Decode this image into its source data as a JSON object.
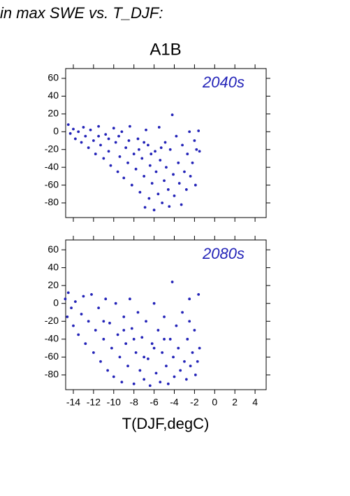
{
  "title": "in max SWE vs. T_DJF:",
  "subtitle": "A1B",
  "xlabel": "T(DJF,degC)",
  "chart_data": [
    {
      "type": "scatter",
      "annotation": "2040s",
      "color": "#2323b8",
      "xlim": [
        -14.76,
        5.1
      ],
      "ylim": [
        -96.5,
        71
      ],
      "yticks": [
        -80,
        -60,
        -40,
        -20,
        0,
        20,
        40,
        60
      ],
      "x": [
        -14.5,
        -14.3,
        -14.0,
        -13.8,
        -13.5,
        -13.2,
        -13.0,
        -12.8,
        -12.5,
        -12.3,
        -12.0,
        -11.8,
        -11.5,
        -11.3,
        -11.0,
        -10.8,
        -10.5,
        -10.3,
        -10.0,
        -9.8,
        -9.6,
        -9.4,
        -9.2,
        -9.0,
        -8.8,
        -8.6,
        -8.4,
        -8.2,
        -8.0,
        -7.8,
        -7.6,
        -7.4,
        -7.2,
        -7.0,
        -6.9,
        -6.8,
        -6.6,
        -6.5,
        -6.4,
        -6.2,
        -6.0,
        -5.9,
        -5.8,
        -5.6,
        -5.5,
        -5.4,
        -5.2,
        -5.0,
        -4.9,
        -4.8,
        -4.6,
        -4.5,
        -4.4,
        -4.2,
        -4.1,
        -4.0,
        -3.8,
        -3.6,
        -3.5,
        -3.3,
        -3.2,
        -3.0,
        -2.8,
        -2.7,
        -2.5,
        -2.4,
        -2.2,
        -2.0,
        -1.9,
        -1.8,
        -1.6,
        -1.5,
        -7.5,
        -8.5,
        -6.3,
        -5.3,
        -9.5,
        -10.5,
        -11.5,
        -7.0
      ],
      "y": [
        8,
        -2,
        3,
        -8,
        0,
        -12,
        5,
        -5,
        -18,
        2,
        -10,
        -25,
        6,
        -15,
        -30,
        -3,
        -22,
        -38,
        4,
        -12,
        -45,
        -28,
        0,
        -52,
        -18,
        -35,
        6,
        -60,
        -25,
        -42,
        -8,
        -68,
        -30,
        -50,
        -85,
        2,
        -15,
        -75,
        -38,
        -58,
        -88,
        -22,
        -45,
        -70,
        5,
        -32,
        -80,
        -55,
        -12,
        -40,
        -65,
        -84,
        -20,
        19,
        -48,
        -72,
        -5,
        -35,
        -58,
        -82,
        -15,
        -45,
        -65,
        -25,
        0,
        -50,
        -35,
        -10,
        -60,
        -20,
        1,
        -22,
        -20,
        -10,
        -25,
        -18,
        -5,
        -8,
        -5,
        -12
      ]
    },
    {
      "type": "scatter",
      "annotation": "2080s",
      "color": "#2323b8",
      "xlim": [
        -14.76,
        5.1
      ],
      "ylim": [
        -96.5,
        71
      ],
      "yticks": [
        -80,
        -60,
        -40,
        -20,
        0,
        20,
        40,
        60
      ],
      "xticks": [
        -14,
        -12,
        -10,
        -8,
        -6,
        -4,
        -2,
        0,
        2,
        4
      ],
      "x": [
        -14.8,
        -14.6,
        -14.5,
        -14.2,
        -14.0,
        -13.8,
        -13.5,
        -13.2,
        -13.0,
        -12.8,
        -12.5,
        -12.2,
        -12.0,
        -11.8,
        -11.5,
        -11.3,
        -11.0,
        -10.8,
        -10.6,
        -10.4,
        -10.2,
        -10.0,
        -9.8,
        -9.6,
        -9.4,
        -9.2,
        -9.0,
        -8.8,
        -8.6,
        -8.4,
        -8.2,
        -8.0,
        -7.8,
        -7.6,
        -7.4,
        -7.2,
        -7.0,
        -6.8,
        -6.6,
        -6.4,
        -6.2,
        -6.0,
        -5.8,
        -5.6,
        -5.4,
        -5.2,
        -5.0,
        -4.8,
        -4.6,
        -4.4,
        -4.2,
        -4.1,
        -4.0,
        -3.8,
        -3.6,
        -3.4,
        -3.2,
        -3.0,
        -2.8,
        -2.7,
        -2.5,
        -2.4,
        -2.2,
        -2.0,
        -1.9,
        -1.7,
        -1.6,
        -1.5,
        -2.5,
        -8.0,
        -6.0,
        -7.0,
        -5.0,
        -9.0,
        -11.0
      ],
      "y": [
        5,
        -15,
        12,
        -5,
        -25,
        2,
        -35,
        -12,
        8,
        -45,
        -20,
        10,
        -55,
        -30,
        -5,
        -65,
        -40,
        5,
        -75,
        -22,
        -50,
        -82,
        0,
        -35,
        -60,
        -88,
        -15,
        -45,
        -70,
        5,
        -28,
        -90,
        -55,
        -10,
        -75,
        -38,
        -85,
        -20,
        -62,
        -92,
        -45,
        0,
        -78,
        -30,
        -88,
        -55,
        -15,
        -70,
        -90,
        -40,
        24,
        -60,
        -82,
        -25,
        -50,
        -75,
        -10,
        -65,
        -85,
        -40,
        -20,
        -70,
        -55,
        -30,
        -80,
        -65,
        10,
        -50,
        5,
        -40,
        -50,
        -60,
        -40,
        -30,
        -20
      ]
    }
  ]
}
